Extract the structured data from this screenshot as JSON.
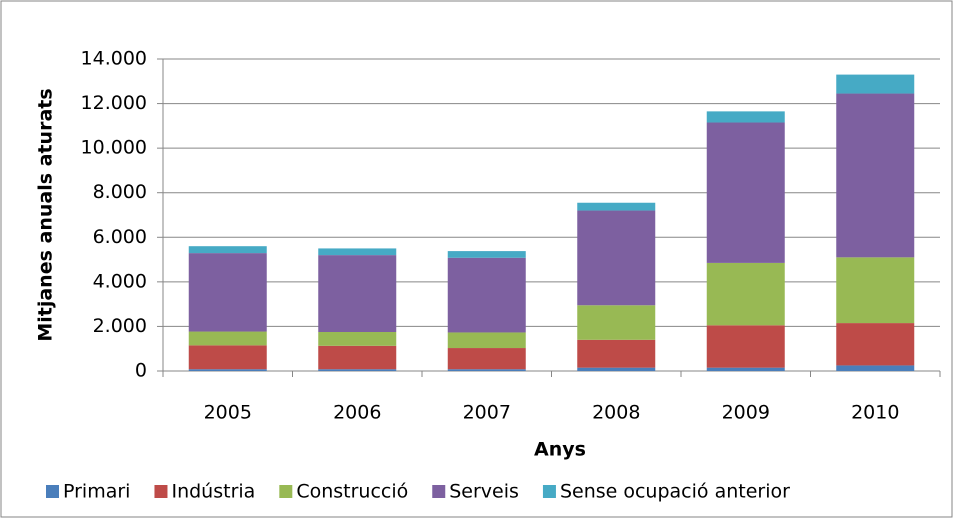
{
  "chart_data": {
    "type": "bar",
    "stacked": true,
    "x_label": "Anys",
    "y_label": "Mitjanes anuals aturats",
    "categories": [
      "2005",
      "2006",
      "2007",
      "2008",
      "2009",
      "2010"
    ],
    "series": [
      {
        "name": "Primari",
        "color": "#4a7ebb",
        "values": [
          80,
          80,
          80,
          150,
          150,
          250
        ]
      },
      {
        "name": "Indústria",
        "color": "#be4b48",
        "values": [
          1070,
          1050,
          950,
          1250,
          1900,
          1900
        ]
      },
      {
        "name": "Construcció",
        "color": "#98b954",
        "values": [
          620,
          620,
          700,
          1550,
          2800,
          2950
        ]
      },
      {
        "name": "Serveis",
        "color": "#7d60a0",
        "values": [
          3520,
          3450,
          3350,
          4250,
          6300,
          7350
        ]
      },
      {
        "name": "Sense ocupació anterior",
        "color": "#46aac5",
        "values": [
          310,
          300,
          300,
          350,
          500,
          850
        ]
      }
    ],
    "ylim": [
      0,
      14000
    ],
    "yticks": [
      0,
      {
        "value": 2000,
        "label": "2.000"
      },
      {
        "value": 4000,
        "label": "4.000"
      },
      {
        "value": 6000,
        "label": "6.000"
      },
      {
        "value": 8000,
        "label": "8.000"
      },
      {
        "value": 10000,
        "label": "10.000"
      },
      {
        "value": 12000,
        "label": "12.000"
      },
      {
        "value": 14000,
        "label": "14.000"
      }
    ],
    "grid": true,
    "legend": "bottom"
  }
}
